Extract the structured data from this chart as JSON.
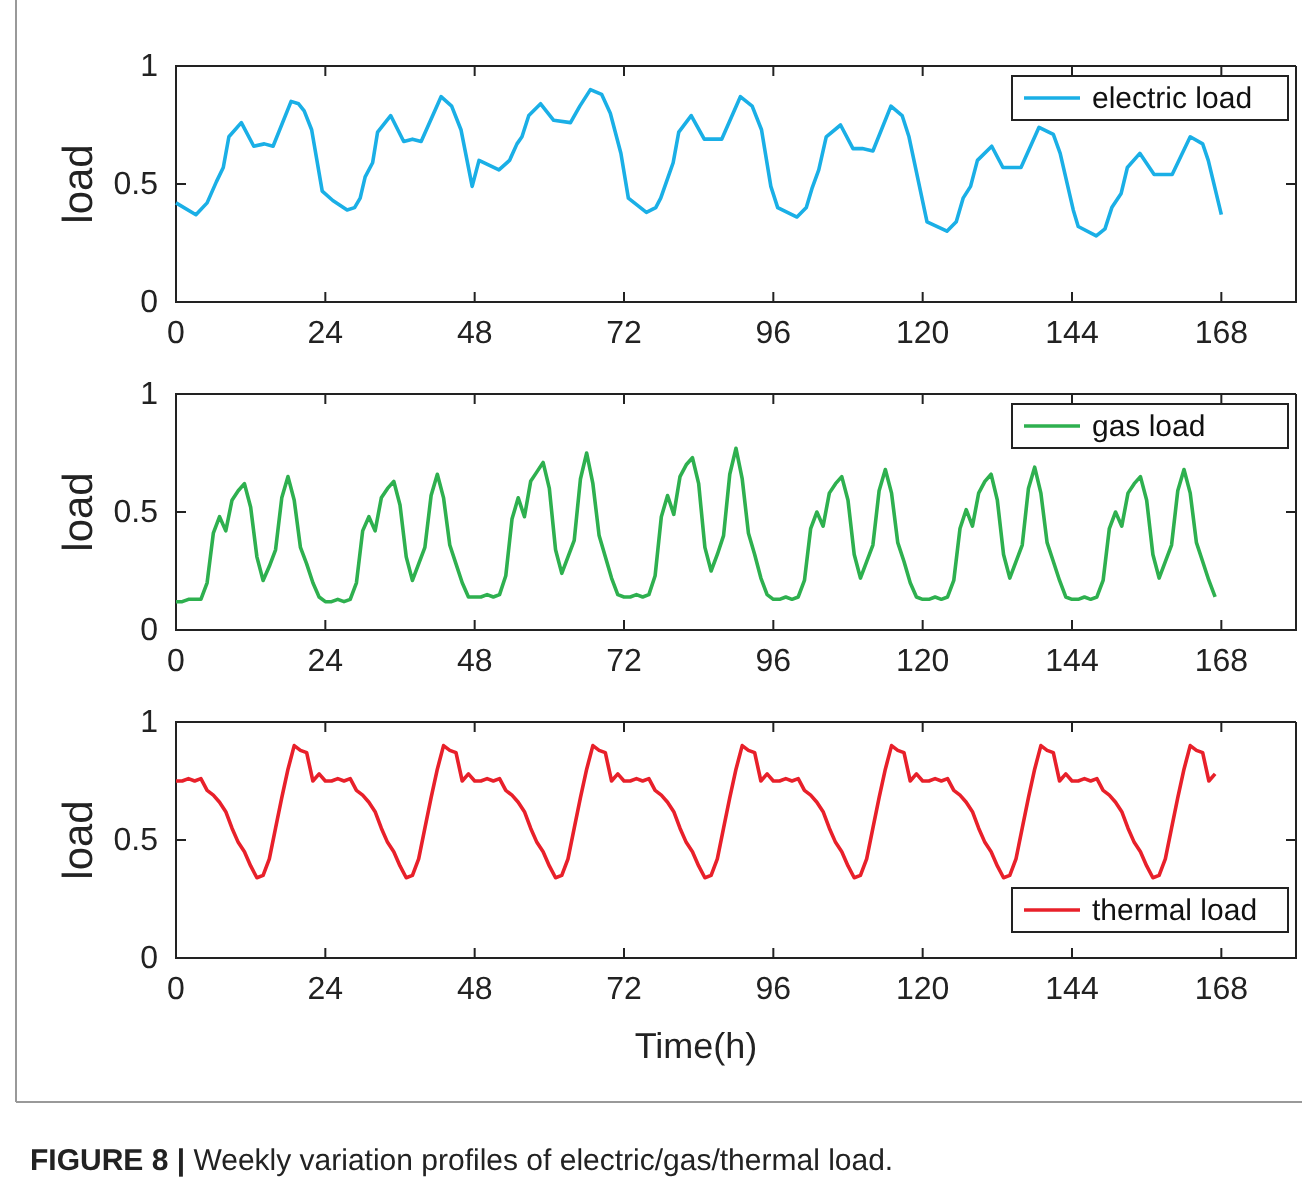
{
  "chart_data": [
    {
      "type": "line",
      "ylabel": "load",
      "xlim": [
        0,
        180
      ],
      "ylim": [
        0,
        1
      ],
      "xticks": [
        0,
        24,
        48,
        72,
        96,
        120,
        144,
        168
      ],
      "yticks": [
        0,
        0.5,
        1
      ],
      "legend": "top right",
      "grid": false,
      "series": [
        {
          "name": "electric load",
          "color": "#1aafe6",
          "x": [
            0,
            3.2,
            5,
            6.5,
            7.6,
            8.5,
            10.5,
            12.5,
            14.2,
            15.6,
            18.5,
            19.7,
            20.6,
            21.8,
            23.5,
            25.2,
            27.5,
            28.7,
            29.6,
            30.4,
            31.6,
            32.4,
            34.5,
            36.6,
            38,
            39.4,
            42.6,
            44.3,
            45.8,
            47.6,
            48.7,
            51.9,
            53.6,
            54.8,
            55.6,
            56.7,
            58.6,
            60.7,
            63.4,
            64.9,
            66.6,
            68.4,
            69.8,
            71.5,
            72.7,
            75.6,
            77.1,
            77.9,
            79.1,
            79.9,
            80.8,
            82.8,
            84.9,
            86.3,
            87.7,
            90.7,
            92.6,
            94.1,
            95.6,
            96.7,
            99.8,
            101.3,
            102.2,
            103.3,
            104.5,
            106.8,
            108.8,
            110.3,
            112,
            114.9,
            116.7,
            117.8,
            120.7,
            123.9,
            125.4,
            126.5,
            127.7,
            128.8,
            131.1,
            132.9,
            134.6,
            135.8,
            138.7,
            141,
            142.1,
            144.2,
            145,
            147.9,
            149.3,
            150.4,
            151.9,
            152.9,
            154.9,
            157.2,
            158.7,
            160.1,
            163,
            165,
            165.9,
            168
          ],
          "values": [
            0.42,
            0.37,
            0.42,
            0.51,
            0.57,
            0.7,
            0.76,
            0.66,
            0.67,
            0.66,
            0.85,
            0.84,
            0.81,
            0.73,
            0.47,
            0.43,
            0.39,
            0.4,
            0.44,
            0.53,
            0.59,
            0.72,
            0.79,
            0.68,
            0.69,
            0.68,
            0.87,
            0.83,
            0.73,
            0.49,
            0.6,
            0.56,
            0.6,
            0.67,
            0.7,
            0.79,
            0.84,
            0.77,
            0.76,
            0.83,
            0.9,
            0.88,
            0.8,
            0.63,
            0.44,
            0.38,
            0.4,
            0.44,
            0.53,
            0.59,
            0.72,
            0.79,
            0.69,
            0.69,
            0.69,
            0.87,
            0.83,
            0.73,
            0.49,
            0.4,
            0.36,
            0.4,
            0.48,
            0.56,
            0.7,
            0.75,
            0.65,
            0.65,
            0.64,
            0.83,
            0.79,
            0.7,
            0.34,
            0.3,
            0.34,
            0.44,
            0.49,
            0.6,
            0.66,
            0.57,
            0.57,
            0.57,
            0.74,
            0.71,
            0.63,
            0.39,
            0.32,
            0.28,
            0.31,
            0.4,
            0.46,
            0.57,
            0.63,
            0.54,
            0.54,
            0.54,
            0.7,
            0.67,
            0.6,
            0.37
          ]
        }
      ]
    },
    {
      "type": "line",
      "ylabel": "load",
      "xlim": [
        0,
        180
      ],
      "ylim": [
        0,
        1
      ],
      "xticks": [
        0,
        24,
        48,
        72,
        96,
        120,
        144,
        168
      ],
      "yticks": [
        0,
        0.5,
        1
      ],
      "legend": "top right",
      "grid": false,
      "series": [
        {
          "name": "gas load",
          "color": "#2eb04f",
          "x": [
            0,
            1,
            2,
            3,
            4,
            5,
            6,
            7,
            8,
            9,
            10,
            11,
            12,
            13,
            14,
            15,
            16,
            17,
            18,
            19,
            20,
            21,
            22,
            23,
            24,
            25,
            26,
            27,
            28,
            29,
            30,
            31,
            32,
            33,
            34,
            35,
            36,
            37,
            38,
            39,
            40,
            41,
            42,
            43,
            44,
            45,
            46,
            47,
            48,
            49,
            50,
            51,
            52,
            53,
            54,
            55,
            56,
            57,
            58,
            59,
            60,
            61,
            62,
            63,
            64,
            65,
            66,
            67,
            68,
            69,
            70,
            71,
            72,
            73,
            74,
            75,
            76,
            77,
            78,
            79,
            80,
            81,
            82,
            83,
            84,
            85,
            86,
            87,
            88,
            89,
            90,
            91,
            92,
            93,
            94,
            95,
            96,
            97,
            98,
            99,
            100,
            101,
            102,
            103,
            104,
            105,
            106,
            107,
            108,
            109,
            110,
            111,
            112,
            113,
            114,
            115,
            116,
            117,
            118,
            119,
            120,
            121,
            122,
            123,
            124,
            125,
            126,
            127,
            128,
            129,
            130,
            131,
            132,
            133,
            134,
            135,
            136,
            137,
            138,
            139,
            140,
            141,
            142,
            143,
            144,
            145,
            146,
            147,
            148,
            149,
            150,
            151,
            152,
            153,
            154,
            155,
            156,
            157,
            158,
            159,
            160,
            161,
            162,
            163,
            164,
            165,
            166,
            167
          ],
          "values": [
            0.12,
            0.12,
            0.13,
            0.13,
            0.13,
            0.2,
            0.41,
            0.48,
            0.42,
            0.55,
            0.59,
            0.62,
            0.52,
            0.31,
            0.21,
            0.27,
            0.34,
            0.56,
            0.65,
            0.55,
            0.35,
            0.28,
            0.2,
            0.14,
            0.12,
            0.12,
            0.13,
            0.12,
            0.13,
            0.2,
            0.42,
            0.48,
            0.42,
            0.56,
            0.6,
            0.63,
            0.53,
            0.31,
            0.21,
            0.28,
            0.35,
            0.57,
            0.66,
            0.56,
            0.36,
            0.28,
            0.2,
            0.14,
            0.14,
            0.14,
            0.15,
            0.14,
            0.15,
            0.23,
            0.47,
            0.56,
            0.48,
            0.63,
            0.67,
            0.71,
            0.6,
            0.34,
            0.24,
            0.31,
            0.38,
            0.64,
            0.75,
            0.62,
            0.4,
            0.31,
            0.22,
            0.15,
            0.14,
            0.14,
            0.15,
            0.14,
            0.15,
            0.23,
            0.48,
            0.57,
            0.49,
            0.65,
            0.7,
            0.73,
            0.62,
            0.35,
            0.25,
            0.32,
            0.4,
            0.66,
            0.77,
            0.64,
            0.41,
            0.32,
            0.22,
            0.15,
            0.13,
            0.13,
            0.14,
            0.13,
            0.14,
            0.21,
            0.43,
            0.5,
            0.44,
            0.58,
            0.62,
            0.65,
            0.55,
            0.32,
            0.22,
            0.29,
            0.36,
            0.59,
            0.68,
            0.58,
            0.37,
            0.29,
            0.2,
            0.14,
            0.13,
            0.13,
            0.14,
            0.13,
            0.14,
            0.21,
            0.43,
            0.51,
            0.44,
            0.58,
            0.63,
            0.66,
            0.55,
            0.32,
            0.22,
            0.29,
            0.36,
            0.6,
            0.69,
            0.58,
            0.37,
            0.29,
            0.21,
            0.14,
            0.13,
            0.13,
            0.14,
            0.13,
            0.14,
            0.21,
            0.43,
            0.5,
            0.44,
            0.58,
            0.62,
            0.65,
            0.55,
            0.32,
            0.22,
            0.29,
            0.36,
            0.59,
            0.68,
            0.58,
            0.37,
            0.29,
            0.21,
            0.14
          ]
        }
      ]
    },
    {
      "type": "line",
      "xlabel": "Time(h)",
      "ylabel": "load",
      "xlim": [
        0,
        180
      ],
      "ylim": [
        0,
        1
      ],
      "xticks": [
        0,
        24,
        48,
        72,
        96,
        120,
        144,
        168
      ],
      "yticks": [
        0,
        0.5,
        1
      ],
      "legend": "bottom right",
      "grid": false,
      "annotations": [
        "FIGURE 8 | Weekly variation profiles of electric/gas/thermal load."
      ],
      "series": [
        {
          "name": "thermal load",
          "color": "#e8202a",
          "x": [
            0,
            1,
            2,
            3,
            4,
            5,
            6,
            7,
            8,
            9,
            10,
            11,
            12,
            13,
            14,
            15,
            16,
            17,
            18,
            19,
            20,
            21,
            22,
            23,
            24,
            25,
            26,
            27,
            28,
            29,
            30,
            31,
            32,
            33,
            34,
            35,
            36,
            37,
            38,
            39,
            40,
            41,
            42,
            43,
            44,
            45,
            46,
            47,
            48,
            49,
            50,
            51,
            52,
            53,
            54,
            55,
            56,
            57,
            58,
            59,
            60,
            61,
            62,
            63,
            64,
            65,
            66,
            67,
            68,
            69,
            70,
            71,
            72,
            73,
            74,
            75,
            76,
            77,
            78,
            79,
            80,
            81,
            82,
            83,
            84,
            85,
            86,
            87,
            88,
            89,
            90,
            91,
            92,
            93,
            94,
            95,
            96,
            97,
            98,
            99,
            100,
            101,
            102,
            103,
            104,
            105,
            106,
            107,
            108,
            109,
            110,
            111,
            112,
            113,
            114,
            115,
            116,
            117,
            118,
            119,
            120,
            121,
            122,
            123,
            124,
            125,
            126,
            127,
            128,
            129,
            130,
            131,
            132,
            133,
            134,
            135,
            136,
            137,
            138,
            139,
            140,
            141,
            142,
            143,
            144,
            145,
            146,
            147,
            148,
            149,
            150,
            151,
            152,
            153,
            154,
            155,
            156,
            157,
            158,
            159,
            160,
            161,
            162,
            163,
            164,
            165,
            166,
            167
          ],
          "values": [
            0.75,
            0.75,
            0.76,
            0.75,
            0.76,
            0.71,
            0.69,
            0.66,
            0.62,
            0.55,
            0.49,
            0.45,
            0.39,
            0.34,
            0.35,
            0.42,
            0.55,
            0.68,
            0.8,
            0.9,
            0.88,
            0.87,
            0.75,
            0.78,
            0.75,
            0.75,
            0.76,
            0.75,
            0.76,
            0.71,
            0.69,
            0.66,
            0.62,
            0.55,
            0.49,
            0.45,
            0.39,
            0.34,
            0.35,
            0.42,
            0.55,
            0.68,
            0.8,
            0.9,
            0.88,
            0.87,
            0.75,
            0.78,
            0.75,
            0.75,
            0.76,
            0.75,
            0.76,
            0.71,
            0.69,
            0.66,
            0.62,
            0.55,
            0.49,
            0.45,
            0.39,
            0.34,
            0.35,
            0.42,
            0.55,
            0.68,
            0.8,
            0.9,
            0.88,
            0.87,
            0.75,
            0.78,
            0.75,
            0.75,
            0.76,
            0.75,
            0.76,
            0.71,
            0.69,
            0.66,
            0.62,
            0.55,
            0.49,
            0.45,
            0.39,
            0.34,
            0.35,
            0.42,
            0.55,
            0.68,
            0.8,
            0.9,
            0.88,
            0.87,
            0.75,
            0.78,
            0.75,
            0.75,
            0.76,
            0.75,
            0.76,
            0.71,
            0.69,
            0.66,
            0.62,
            0.55,
            0.49,
            0.45,
            0.39,
            0.34,
            0.35,
            0.42,
            0.55,
            0.68,
            0.8,
            0.9,
            0.88,
            0.87,
            0.75,
            0.78,
            0.75,
            0.75,
            0.76,
            0.75,
            0.76,
            0.71,
            0.69,
            0.66,
            0.62,
            0.55,
            0.49,
            0.45,
            0.39,
            0.34,
            0.35,
            0.42,
            0.55,
            0.68,
            0.8,
            0.9,
            0.88,
            0.87,
            0.75,
            0.78,
            0.75,
            0.75,
            0.76,
            0.75,
            0.76,
            0.71,
            0.69,
            0.66,
            0.62,
            0.55,
            0.49,
            0.45,
            0.39,
            0.34,
            0.35,
            0.42,
            0.55,
            0.68,
            0.8,
            0.9,
            0.88,
            0.87,
            0.75,
            0.78
          ]
        }
      ]
    }
  ]
}
